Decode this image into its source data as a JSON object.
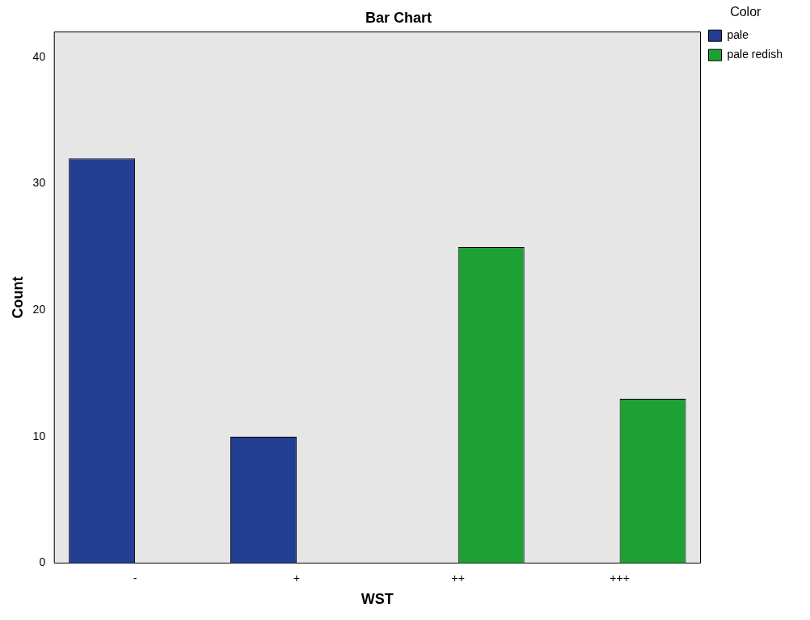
{
  "chart_data": {
    "type": "bar",
    "title": "Bar Chart",
    "xlabel": "WST",
    "ylabel": "Count",
    "legend_title": "Color",
    "categories": [
      "-",
      "+",
      "++",
      "+++"
    ],
    "series": [
      {
        "name": "pale",
        "color": "#233f94",
        "values": [
          32,
          10,
          null,
          null
        ]
      },
      {
        "name": "pale redish",
        "color": "#1fa035",
        "values": [
          null,
          null,
          25,
          13
        ]
      }
    ],
    "ylim": [
      0,
      42
    ],
    "yticks": [
      0,
      10,
      20,
      30,
      40
    ],
    "grid": false,
    "legend": "top right"
  }
}
